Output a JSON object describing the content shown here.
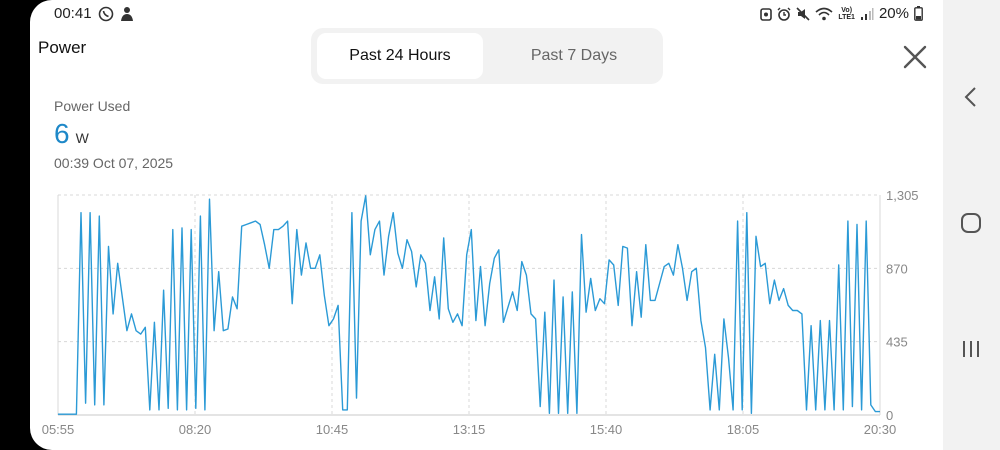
{
  "status_bar": {
    "time": "00:41",
    "battery": "20%"
  },
  "header": {
    "title": "Power",
    "tabs": [
      {
        "label": "Past 24 Hours",
        "active": true
      },
      {
        "label": "Past 7 Days",
        "active": false
      }
    ]
  },
  "summary": {
    "label": "Power Used",
    "value": "6",
    "unit": "W",
    "timestamp": "00:39  Oct 07, 2025"
  },
  "colors": {
    "accent": "#1e88c8",
    "line": "#2b9ad6",
    "grid": "#d8d8d8"
  },
  "icons": [
    "viber-icon",
    "notification-icon",
    "wifi-icon",
    "signal-icon",
    "battery-icon",
    "close-icon",
    "back-icon",
    "home-icon",
    "recents-icon"
  ],
  "chart_data": {
    "type": "line",
    "title": "",
    "xlabel": "",
    "ylabel": "",
    "x_tick_labels": [
      "05:55",
      "08:20",
      "10:45",
      "13:15",
      "15:40",
      "18:05",
      "20:30"
    ],
    "y_tick_labels": [
      "0",
      "435",
      "870",
      "1,305"
    ],
    "ylim": [
      0,
      1305
    ],
    "grid": true,
    "series": [
      {
        "values": [
          5,
          5,
          5,
          5,
          5,
          1200,
          70,
          1200,
          60,
          1180,
          60,
          1000,
          600,
          900,
          700,
          500,
          600,
          500,
          480,
          520,
          30,
          550,
          30,
          740,
          40,
          1100,
          30,
          1110,
          30,
          1100,
          40,
          1180,
          30,
          1280,
          500,
          850,
          500,
          510,
          700,
          630,
          1120,
          1130,
          1140,
          1150,
          1130,
          1010,
          870,
          1100,
          1100,
          1120,
          1150,
          660,
          1100,
          830,
          1020,
          870,
          870,
          950,
          710,
          530,
          570,
          650,
          30,
          30,
          1200,
          100,
          1150,
          1300,
          950,
          1100,
          1150,
          830,
          1060,
          1200,
          960,
          870,
          1040,
          970,
          760,
          950,
          900,
          620,
          820,
          570,
          1050,
          630,
          550,
          600,
          530,
          950,
          1100,
          560,
          880,
          530,
          780,
          930,
          980,
          550,
          640,
          730,
          620,
          910,
          830,
          600,
          570,
          50,
          610,
          10,
          800,
          10,
          700,
          10,
          730,
          10,
          1070,
          610,
          810,
          620,
          690,
          660,
          920,
          890,
          650,
          1000,
          990,
          530,
          850,
          580,
          1010,
          680,
          680,
          780,
          880,
          900,
          830,
          1010,
          870,
          680,
          850,
          870,
          560,
          400,
          30,
          360,
          30,
          570,
          340,
          30,
          1150,
          30,
          1200,
          10,
          1060,
          880,
          900,
          660,
          800,
          680,
          750,
          650,
          620,
          620,
          600,
          30,
          530,
          30,
          560,
          30,
          560,
          30,
          890,
          30,
          1150,
          50,
          1130,
          30,
          1150,
          60,
          20,
          20
        ]
      }
    ]
  }
}
